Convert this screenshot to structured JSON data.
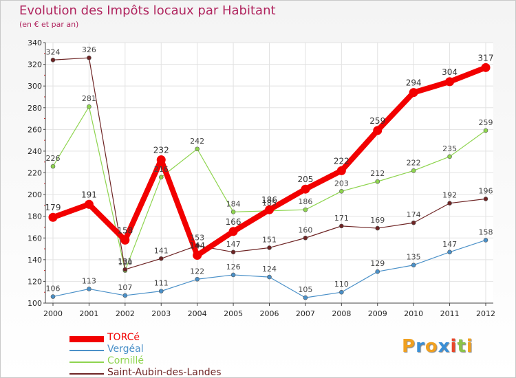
{
  "title": "Evolution des Impôts locaux par Habitant",
  "subtitle": "(en € et par an)",
  "logo": {
    "text": "Proxiti",
    "letters": [
      "P",
      "r",
      "o",
      "x",
      "i",
      "t",
      "i"
    ],
    "colors": [
      "#f0a020",
      "#3a8fd6",
      "#f0a020",
      "#3a8fd6",
      "#e8462a",
      "#8bc34a",
      "#f0a020"
    ]
  },
  "chart_data": {
    "type": "line",
    "categories": [
      "2000",
      "2001",
      "2002",
      "2003",
      "2004",
      "2005",
      "2006",
      "2007",
      "2008",
      "2009",
      "2010",
      "2011",
      "2012"
    ],
    "ylim": [
      100,
      340
    ],
    "yticks": [
      100,
      120,
      140,
      160,
      180,
      200,
      220,
      240,
      260,
      280,
      300,
      320,
      340
    ],
    "grid": true,
    "legend_position": "bottom-left",
    "series": [
      {
        "name": "TORCé",
        "color": "#f20000",
        "values": [
          179,
          191,
          158,
          232,
          144,
          166,
          186,
          205,
          222,
          259,
          294,
          304,
          317
        ]
      },
      {
        "name": "Vergéal",
        "color": "#4a90c8",
        "values": [
          106,
          113,
          107,
          111,
          122,
          126,
          124,
          105,
          110,
          129,
          135,
          147,
          158
        ]
      },
      {
        "name": "Cornillé",
        "color": "#8ed44e",
        "values": [
          226,
          281,
          130,
          216,
          242,
          184,
          185,
          186,
          203,
          212,
          222,
          235,
          259
        ]
      },
      {
        "name": "Saint-Aubin-des-Landes",
        "color": "#6e2424",
        "values": [
          324,
          326,
          131,
          141,
          153,
          147,
          151,
          160,
          171,
          169,
          174,
          192,
          196
        ]
      }
    ]
  }
}
